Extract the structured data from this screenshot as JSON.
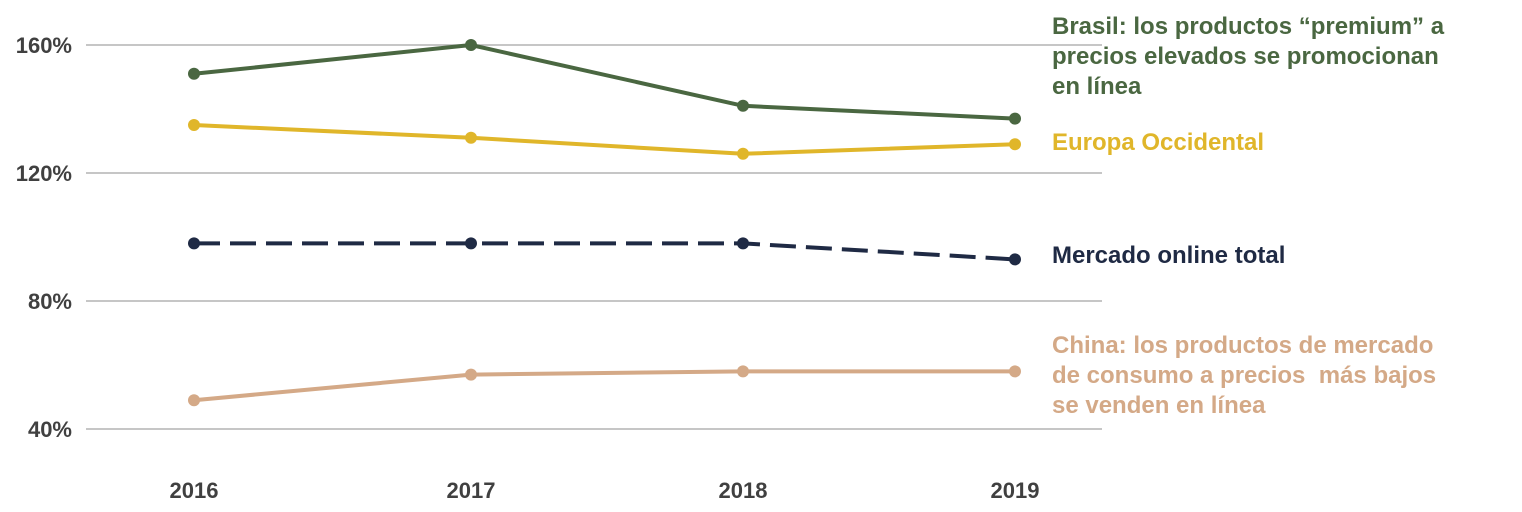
{
  "chart_data": {
    "type": "line",
    "categories": [
      "2016",
      "2017",
      "2018",
      "2019"
    ],
    "y_ticks": [
      40,
      80,
      120,
      160
    ],
    "y_tick_labels": [
      "40%",
      "80%",
      "120%",
      "160%"
    ],
    "ylim": [
      40,
      160
    ],
    "grid": "horizontal",
    "legend": "labels at right end of lines",
    "series": [
      {
        "name": "Brasil: los productos “premium” a precios elevados se promocionan en línea",
        "label_lines": [
          "Brasil: los productos “premium” a",
          "precios elevados se promocionan",
          "en línea"
        ],
        "values": [
          151,
          160,
          141,
          137
        ],
        "color": "#4a6741",
        "dashed": false
      },
      {
        "name": "Europa Occidental",
        "label_lines": [
          "Europa Occidental"
        ],
        "values": [
          135,
          131,
          126,
          129
        ],
        "color": "#e0b62a",
        "dashed": false
      },
      {
        "name": "Mercado online total",
        "label_lines": [
          "Mercado online total"
        ],
        "values": [
          98,
          98,
          98,
          93
        ],
        "color": "#1f2a44",
        "dashed": true
      },
      {
        "name": "China: los productos de mercado de consumo a precios más bajos se venden en línea",
        "label_lines": [
          "China: los productos de mercado",
          "de consumo a precios  más bajos",
          "se venden en línea"
        ],
        "values": [
          49,
          57,
          58,
          58
        ],
        "color": "#d4a987",
        "dashed": false
      }
    ]
  }
}
